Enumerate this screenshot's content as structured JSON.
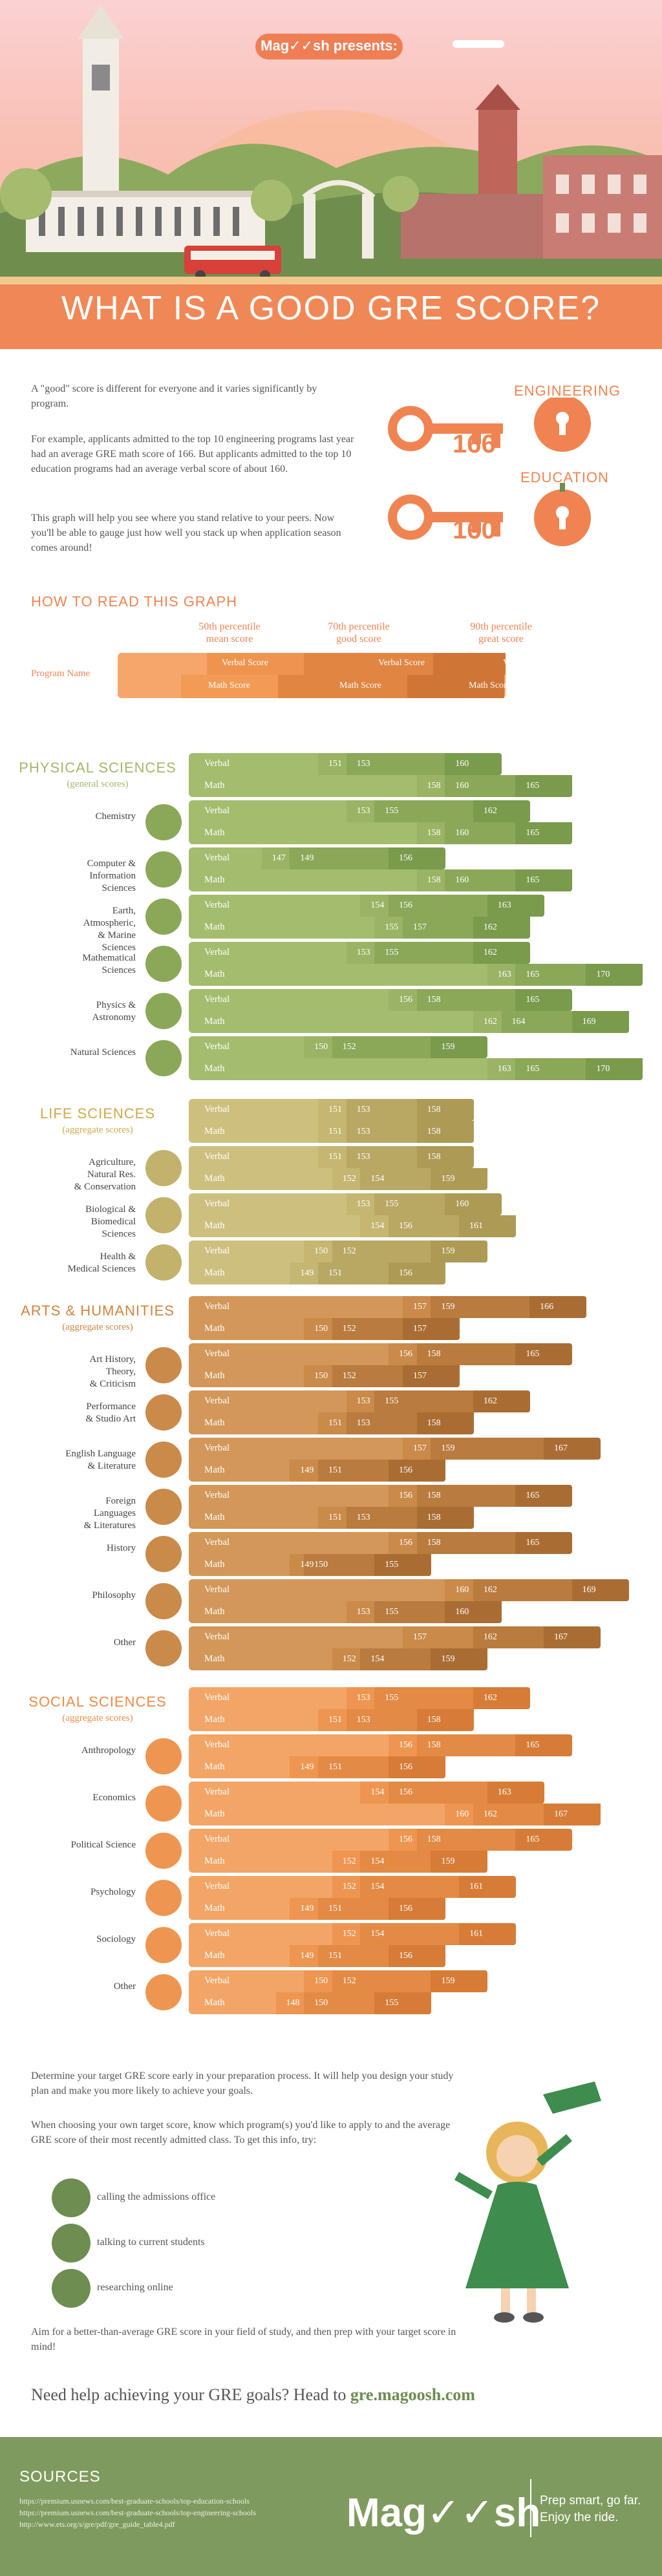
{
  "header": {
    "presents": "Mag✓✓sh presents:",
    "title": "WHAT IS A GOOD GRE SCORE?"
  },
  "intro": {
    "p1": "A \"good\" score is different for everyone and it varies significantly by program.",
    "p2": "For example, applicants admitted to the top 10 engineering programs last year had an average GRE math score of 166. But applicants admitted to the top 10 education programs had an average verbal score of about 160.",
    "p3": "This graph will help you see where you stand relative to your peers. Now you'll be able to gauge just how well you stack up when application season comes around!",
    "engineering_label": "ENGINEERING",
    "engineering_score": "166",
    "education_label": "EDUCATION",
    "education_score": "160"
  },
  "howto": {
    "title": "HOW TO READ THIS GRAPH",
    "p50": "50th percentile\nmean score",
    "p70": "70th percentile\ngood score",
    "p90": "90th percentile\ngreat score",
    "program_name": "Program Name",
    "verbal": "Verbal Score",
    "math": "Math Score"
  },
  "colors": {
    "orange": "#ef8452",
    "green_dark": "#6d8d51",
    "green_mid": "#8faa61",
    "green_light": "#a6bd72",
    "life": "#cfc07a",
    "arts": "#c98a4a",
    "social": "#ef9b5b"
  },
  "chart_data": {
    "type": "bar",
    "title": "WHAT IS A GOOD GRE SCORE?",
    "xlim": [
      140,
      172
    ],
    "series_names": [
      "Verbal",
      "Math"
    ],
    "groups": [
      {
        "name": "PHYSICAL SCIENCES",
        "sub": "(general scores)",
        "palette": "phys",
        "programs": [
          {
            "label": "",
            "icon": "",
            "verbal": [
              151,
              153,
              160
            ],
            "math": [
              158,
              160,
              165
            ],
            "header": true
          },
          {
            "label": "Chemistry",
            "icon": "flask-icon",
            "verbal": [
              153,
              155,
              162
            ],
            "math": [
              158,
              160,
              165
            ]
          },
          {
            "label": "Computer &\nInformation Sciences",
            "icon": "computer-icon",
            "verbal": [
              147,
              149,
              156
            ],
            "math": [
              158,
              160,
              165
            ]
          },
          {
            "label": "Earth, Atmospheric,\n& Marine Sciences",
            "icon": "globe-icon",
            "verbal": [
              154,
              156,
              163
            ],
            "math": [
              155,
              157,
              162
            ]
          },
          {
            "label": "Mathematical\nSciences",
            "icon": "equals-icon",
            "verbal": [
              153,
              155,
              162
            ],
            "math": [
              163,
              165,
              170
            ]
          },
          {
            "label": "Physics & Astronomy",
            "icon": "atom-icon",
            "verbal": [
              156,
              158,
              165
            ],
            "math": [
              162,
              164,
              169
            ]
          },
          {
            "label": "Natural Sciences",
            "icon": "magnifier-icon",
            "verbal": [
              150,
              152,
              159
            ],
            "math": [
              163,
              165,
              170
            ]
          }
        ]
      },
      {
        "name": "LIFE SCIENCES",
        "sub": "(aggregate scores)",
        "palette": "life",
        "programs": [
          {
            "label": "",
            "icon": "",
            "verbal": [
              151,
              153,
              158
            ],
            "math": [
              151,
              153,
              158
            ],
            "header": true
          },
          {
            "label": "Agriculture, Natural Res.\n& Conservation",
            "icon": "recycle-icon",
            "verbal": [
              151,
              153,
              158
            ],
            "math": [
              152,
              154,
              159
            ]
          },
          {
            "label": "Biological &\nBiomedical Sciences",
            "icon": "leaf-icon",
            "verbal": [
              153,
              155,
              160
            ],
            "math": [
              154,
              156,
              161
            ]
          },
          {
            "label": "Health &\nMedical Sciences",
            "icon": "medkit-icon",
            "verbal": [
              150,
              152,
              159
            ],
            "math": [
              149,
              151,
              156
            ]
          }
        ]
      },
      {
        "name": "ARTS & HUMANITIES",
        "sub": "(aggregate scores)",
        "palette": "arts",
        "programs": [
          {
            "label": "",
            "icon": "",
            "verbal": [
              157,
              159,
              166
            ],
            "math": [
              150,
              152,
              157
            ],
            "header": true
          },
          {
            "label": "Art History, Theory,\n& Criticism",
            "icon": "column-icon",
            "verbal": [
              156,
              158,
              165
            ],
            "math": [
              150,
              152,
              157
            ]
          },
          {
            "label": "Performance\n& Studio Art",
            "icon": "palette-icon",
            "verbal": [
              153,
              155,
              162
            ],
            "math": [
              151,
              153,
              158
            ]
          },
          {
            "label": "English Language\n& Literature",
            "icon": "books-icon",
            "verbal": [
              157,
              159,
              167
            ],
            "math": [
              149,
              151,
              156
            ]
          },
          {
            "label": "Foreign Languages\n& Literatures",
            "icon": "language-icon",
            "verbal": [
              156,
              158,
              165
            ],
            "math": [
              151,
              153,
              158
            ]
          },
          {
            "label": "History",
            "icon": "museum-icon",
            "verbal": [
              156,
              158,
              165
            ],
            "math": [
              149,
              150,
              155
            ]
          },
          {
            "label": "Philosophy",
            "icon": "thinker-icon",
            "verbal": [
              160,
              162,
              169
            ],
            "math": [
              153,
              155,
              160
            ]
          },
          {
            "label": "Other",
            "icon": "dots-icon",
            "verbal": [
              157,
              162,
              167
            ],
            "math": [
              152,
              154,
              159
            ]
          }
        ]
      },
      {
        "name": "SOCIAL SCIENCES",
        "sub": "(aggregate scores)",
        "palette": "social",
        "programs": [
          {
            "label": "",
            "icon": "",
            "verbal": [
              153,
              155,
              162
            ],
            "math": [
              151,
              153,
              158
            ],
            "header": true
          },
          {
            "label": "Anthropology",
            "icon": "mask-icon",
            "verbal": [
              156,
              158,
              165
            ],
            "math": [
              149,
              151,
              156
            ]
          },
          {
            "label": "Economics",
            "icon": "chart-icon",
            "verbal": [
              154,
              156,
              163
            ],
            "math": [
              160,
              162,
              167
            ]
          },
          {
            "label": "Political Science",
            "icon": "flag-icon",
            "verbal": [
              156,
              158,
              165
            ],
            "math": [
              152,
              154,
              159
            ]
          },
          {
            "label": "Psychology",
            "icon": "psi-icon",
            "verbal": [
              152,
              154,
              161
            ],
            "math": [
              149,
              151,
              156
            ]
          },
          {
            "label": "Sociology",
            "icon": "person-icon",
            "verbal": [
              152,
              154,
              161
            ],
            "math": [
              149,
              151,
              156
            ]
          },
          {
            "label": "Other",
            "icon": "dots-icon",
            "verbal": [
              150,
              152,
              159
            ],
            "math": [
              148,
              150,
              155
            ]
          }
        ]
      }
    ]
  },
  "bottom": {
    "p1": "Determine your target GRE score early in your preparation process. It will help you design your study plan and make you more likely to achieve your goals.",
    "p2": "When choosing your own target score, know which program(s) you'd like to apply to and the average GRE score of their most recently admitted class. To get this info, try:",
    "tip1": "calling the admissions office",
    "tip2": "talking to current students",
    "tip3": "researching online",
    "p3": "Aim for a better-than-average GRE score in your field of study, and then prep with your target score in mind!",
    "cta_pre": "Need help achieving your GRE goals? Head to ",
    "cta_link": "gre.magoosh.com"
  },
  "footer": {
    "sources_title": "SOURCES",
    "src1": "https://premium.usnews.com/best-graduate-schools/top-education-schools",
    "src2": "https://premium.usnews.com/best-graduate-schools/top-engineering-schools",
    "src3": "http://www.ets.org/s/gre/pdf/gre_guide_table4.pdf",
    "brand": "Mag✓✓sh",
    "tagline": "Prep smart, go far.\nEnjoy the ride."
  }
}
